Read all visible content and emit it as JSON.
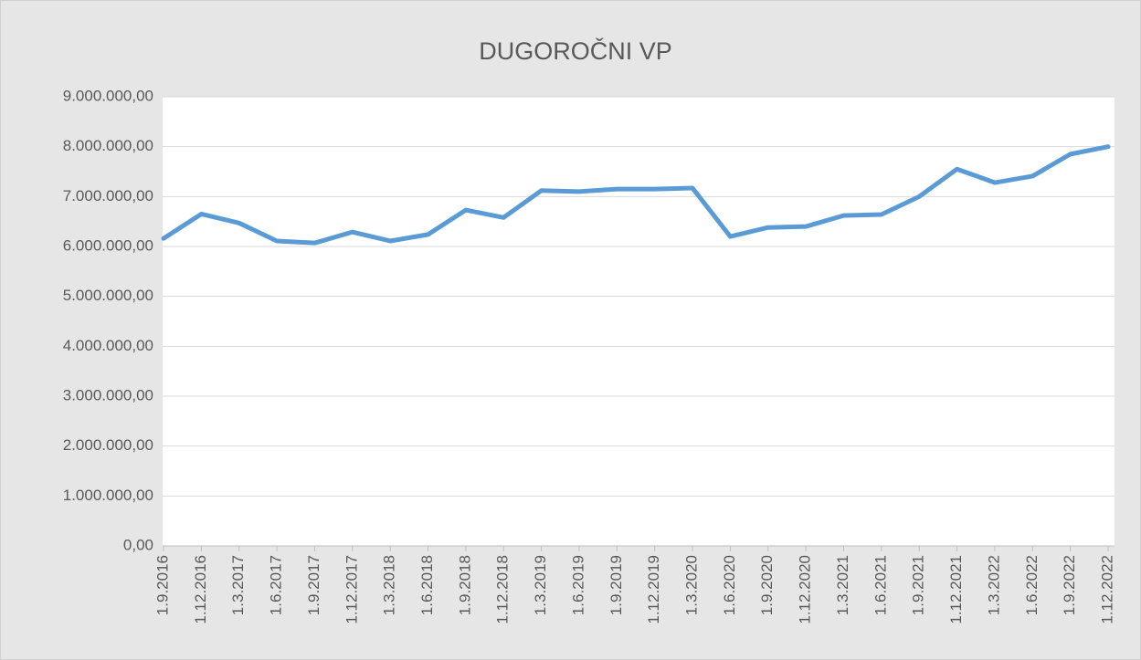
{
  "chart_data": {
    "type": "line",
    "title": "DUGOROČNI VP",
    "categories": [
      "1.9.2016",
      "1.12.2016",
      "1.3.2017",
      "1.6.2017",
      "1.9.2017",
      "1.12.2017",
      "1.3.2018",
      "1.6.2018",
      "1.9.2018",
      "1.12.2018",
      "1.3.2019",
      "1.6.2019",
      "1.9.2019",
      "1.12.2019",
      "1.3.2020",
      "1.6.2020",
      "1.9.2020",
      "1.12.2020",
      "1.3.2021",
      "1.6.2021",
      "1.9.2021",
      "1.12.2021",
      "1.3.2022",
      "1.6.2022",
      "1.9.2022",
      "1.12.2022"
    ],
    "values": [
      6160000,
      6650000,
      6470000,
      6110000,
      6070000,
      6290000,
      6110000,
      6240000,
      6730000,
      6580000,
      7120000,
      7100000,
      7150000,
      7150000,
      7170000,
      6200000,
      6380000,
      6400000,
      6620000,
      6640000,
      7000000,
      7550000,
      7280000,
      7410000,
      7850000,
      8000000
    ],
    "color": "#5b9bd5",
    "ylim": [
      0,
      9000000
    ],
    "yticks": [
      {
        "value": 0,
        "label": "0,00"
      },
      {
        "value": 1000000,
        "label": "1.000.000,00"
      },
      {
        "value": 2000000,
        "label": "2.000.000,00"
      },
      {
        "value": 3000000,
        "label": "3.000.000,00"
      },
      {
        "value": 4000000,
        "label": "4.000.000,00"
      },
      {
        "value": 5000000,
        "label": "5.000.000,00"
      },
      {
        "value": 6000000,
        "label": "6.000.000,00"
      },
      {
        "value": 7000000,
        "label": "7.000.000,00"
      },
      {
        "value": 8000000,
        "label": "8.000.000,00"
      },
      {
        "value": 9000000,
        "label": "9.000.000,00"
      }
    ],
    "grid": true
  }
}
